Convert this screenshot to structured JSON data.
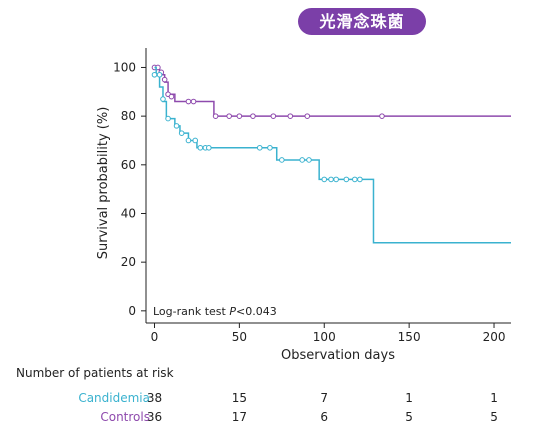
{
  "badge": {
    "text": "光滑念珠菌",
    "color": "#7b3fa8"
  },
  "chart_data": {
    "type": "line",
    "subtype": "kaplan-meier-step",
    "xlabel": "Observation days",
    "ylabel": "Survival probability  (%)",
    "xlim": [
      -5,
      210
    ],
    "ylim": [
      -5,
      108
    ],
    "xticks": [
      0,
      50,
      100,
      150,
      200
    ],
    "yticks": [
      0,
      20,
      40,
      60,
      80,
      100
    ],
    "grid": false,
    "annotation": {
      "prefix": "Log-rank test ",
      "stat": "P",
      "suffix": "<0.043"
    },
    "series": [
      {
        "name": "Controls",
        "color": "#8e4aad",
        "steps": [
          [
            0,
            100
          ],
          [
            3,
            97
          ],
          [
            6,
            94
          ],
          [
            8,
            89
          ],
          [
            12,
            86
          ],
          [
            35,
            80
          ],
          [
            210,
            80
          ]
        ],
        "censored": [
          [
            0,
            100
          ],
          [
            2,
            100
          ],
          [
            4,
            98
          ],
          [
            6,
            95
          ],
          [
            8,
            89
          ],
          [
            10,
            88
          ],
          [
            20,
            86
          ],
          [
            23,
            86
          ],
          [
            36,
            80
          ],
          [
            44,
            80
          ],
          [
            50,
            80
          ],
          [
            58,
            80
          ],
          [
            70,
            80
          ],
          [
            80,
            80
          ],
          [
            90,
            80
          ],
          [
            134,
            80
          ]
        ]
      },
      {
        "name": "Candidemia",
        "color": "#3ab2cf",
        "steps": [
          [
            0,
            100
          ],
          [
            1,
            97
          ],
          [
            3,
            92
          ],
          [
            5,
            86
          ],
          [
            7,
            79
          ],
          [
            12,
            76
          ],
          [
            15,
            73
          ],
          [
            20,
            70
          ],
          [
            25,
            67
          ],
          [
            72,
            62
          ],
          [
            97,
            54
          ],
          [
            129,
            28
          ],
          [
            210,
            28
          ]
        ],
        "censored": [
          [
            0,
            97
          ],
          [
            3,
            97
          ],
          [
            5,
            87
          ],
          [
            8,
            79
          ],
          [
            13,
            76
          ],
          [
            16,
            73
          ],
          [
            20,
            70
          ],
          [
            24,
            70
          ],
          [
            27,
            67
          ],
          [
            30,
            67
          ],
          [
            32,
            67
          ],
          [
            62,
            67
          ],
          [
            68,
            67
          ],
          [
            75,
            62
          ],
          [
            87,
            62
          ],
          [
            91,
            62
          ],
          [
            100,
            54
          ],
          [
            104,
            54
          ],
          [
            107,
            54
          ],
          [
            113,
            54
          ],
          [
            118,
            54
          ],
          [
            121,
            54
          ]
        ]
      }
    ]
  },
  "risk_table": {
    "title": "Number of patients at risk",
    "time_points": [
      0,
      50,
      100,
      150,
      200
    ],
    "rows": [
      {
        "name": "Candidemia",
        "color": "#3ab2cf",
        "values": [
          "38",
          "15",
          "7",
          "1",
          "1"
        ]
      },
      {
        "name": "Controls",
        "color": "#8e4aad",
        "values": [
          "36",
          "17",
          "6",
          "5",
          "5"
        ]
      }
    ]
  }
}
